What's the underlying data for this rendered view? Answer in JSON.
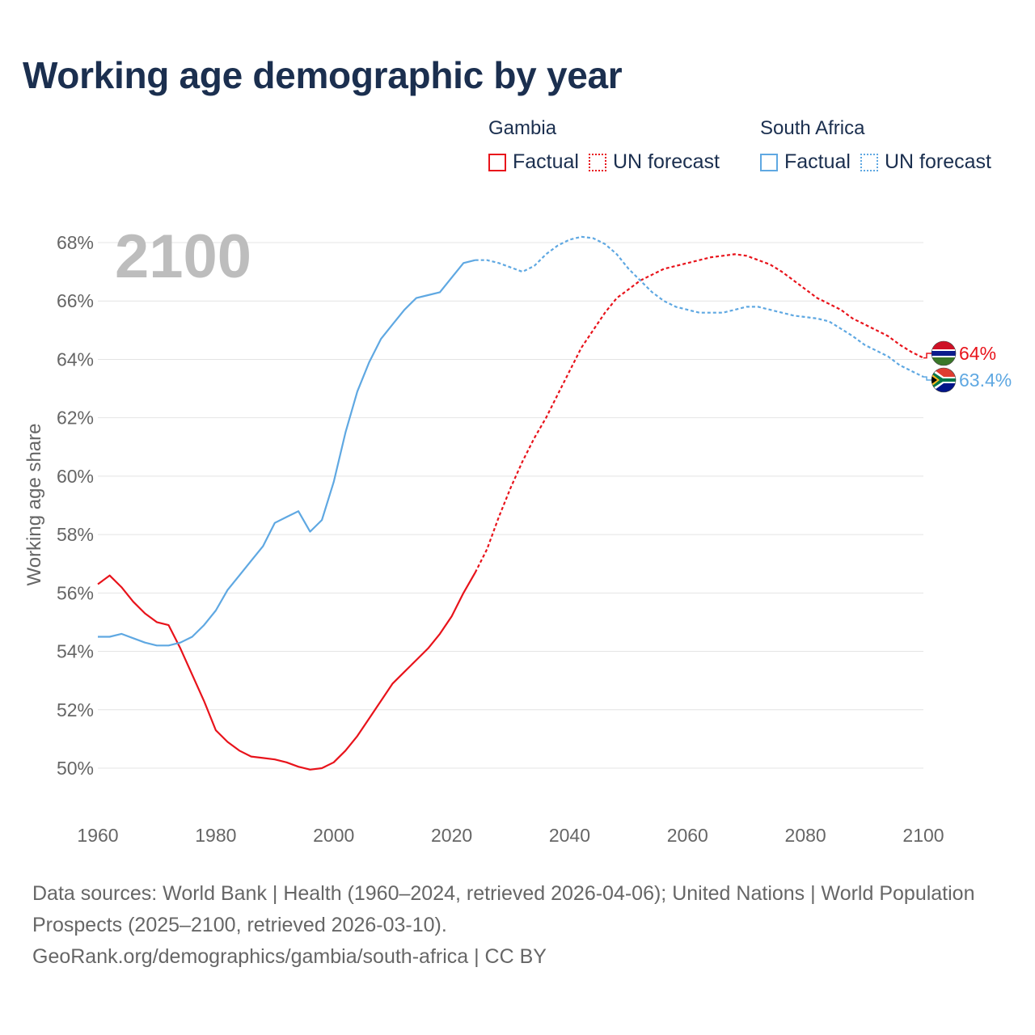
{
  "title": "Working age demographic by year",
  "legend": {
    "groups": [
      {
        "name": "Gambia",
        "factual_label": "Factual",
        "forecast_label": "UN forecast",
        "color": "#e8131b"
      },
      {
        "name": "South Africa",
        "factual_label": "Factual",
        "forecast_label": "UN forecast",
        "color": "#5fa8e2"
      }
    ]
  },
  "chart_data": {
    "type": "line",
    "year_label": "2100",
    "ylabel": "Working age share",
    "xlim": [
      1960,
      2100
    ],
    "ylim": [
      48.5,
      68.5
    ],
    "xticks": [
      1960,
      1980,
      2000,
      2020,
      2040,
      2060,
      2080,
      2100
    ],
    "yticks": [
      50,
      52,
      54,
      56,
      58,
      60,
      62,
      64,
      66,
      68
    ],
    "tick_suffix": "%",
    "forecast_start": 2024,
    "series": [
      {
        "name": "Gambia",
        "color": "#e8131b",
        "end_label": "64%",
        "end_icon": "gambia-flag-icon",
        "x": [
          1960,
          1962,
          1964,
          1966,
          1968,
          1970,
          1972,
          1974,
          1976,
          1978,
          1980,
          1982,
          1984,
          1986,
          1988,
          1990,
          1992,
          1994,
          1996,
          1998,
          2000,
          2002,
          2004,
          2006,
          2008,
          2010,
          2012,
          2014,
          2016,
          2018,
          2020,
          2022,
          2024,
          2026,
          2028,
          2030,
          2032,
          2034,
          2036,
          2038,
          2040,
          2042,
          2044,
          2046,
          2048,
          2050,
          2052,
          2054,
          2056,
          2058,
          2060,
          2062,
          2064,
          2066,
          2068,
          2070,
          2072,
          2074,
          2076,
          2078,
          2080,
          2082,
          2084,
          2086,
          2088,
          2090,
          2092,
          2094,
          2096,
          2098,
          2100
        ],
        "values": [
          56.3,
          56.6,
          56.2,
          55.7,
          55.3,
          55.0,
          54.9,
          54.1,
          53.2,
          52.3,
          51.3,
          50.9,
          50.6,
          50.4,
          50.35,
          50.3,
          50.2,
          50.05,
          49.95,
          50.0,
          50.2,
          50.6,
          51.1,
          51.7,
          52.3,
          52.9,
          53.3,
          53.7,
          54.1,
          54.6,
          55.2,
          56.0,
          56.7,
          57.5,
          58.6,
          59.6,
          60.5,
          61.3,
          62.0,
          62.8,
          63.6,
          64.4,
          65.0,
          65.6,
          66.1,
          66.4,
          66.7,
          66.9,
          67.1,
          67.2,
          67.3,
          67.4,
          67.5,
          67.55,
          67.6,
          67.55,
          67.4,
          67.25,
          67.0,
          66.7,
          66.4,
          66.1,
          65.9,
          65.7,
          65.4,
          65.2,
          65.0,
          64.8,
          64.5,
          64.25,
          64.05
        ]
      },
      {
        "name": "South Africa",
        "color": "#5fa8e2",
        "end_label": "63.4%",
        "end_icon": "south-africa-flag-icon",
        "x": [
          1960,
          1962,
          1964,
          1966,
          1968,
          1970,
          1972,
          1974,
          1976,
          1978,
          1980,
          1982,
          1984,
          1986,
          1988,
          1990,
          1992,
          1994,
          1996,
          1998,
          2000,
          2002,
          2004,
          2006,
          2008,
          2010,
          2012,
          2014,
          2016,
          2018,
          2020,
          2022,
          2024,
          2026,
          2028,
          2030,
          2032,
          2034,
          2036,
          2038,
          2040,
          2042,
          2044,
          2046,
          2048,
          2050,
          2052,
          2054,
          2056,
          2058,
          2060,
          2062,
          2064,
          2066,
          2068,
          2070,
          2072,
          2074,
          2076,
          2078,
          2080,
          2082,
          2084,
          2086,
          2088,
          2090,
          2092,
          2094,
          2096,
          2098,
          2100
        ],
        "values": [
          54.5,
          54.5,
          54.6,
          54.45,
          54.3,
          54.2,
          54.2,
          54.3,
          54.5,
          54.9,
          55.4,
          56.1,
          56.6,
          57.1,
          57.6,
          58.4,
          58.6,
          58.8,
          58.1,
          58.5,
          59.8,
          61.5,
          62.9,
          63.9,
          64.7,
          65.2,
          65.7,
          66.1,
          66.2,
          66.3,
          66.8,
          67.3,
          67.4,
          67.4,
          67.3,
          67.15,
          67.0,
          67.2,
          67.6,
          67.9,
          68.1,
          68.2,
          68.15,
          67.95,
          67.6,
          67.1,
          66.7,
          66.3,
          66.0,
          65.8,
          65.7,
          65.6,
          65.6,
          65.6,
          65.7,
          65.8,
          65.8,
          65.7,
          65.6,
          65.5,
          65.45,
          65.4,
          65.3,
          65.05,
          64.8,
          64.5,
          64.3,
          64.1,
          63.8,
          63.6,
          63.4
        ]
      }
    ]
  },
  "footer": {
    "line1": "Data sources: World Bank | Health (1960–2024, retrieved 2026-04-06); United Nations | World Population Prospects (2025–2100, retrieved 2026-03-10).",
    "line2": "GeoRank.org/demographics/gambia/south-africa | CC BY"
  }
}
